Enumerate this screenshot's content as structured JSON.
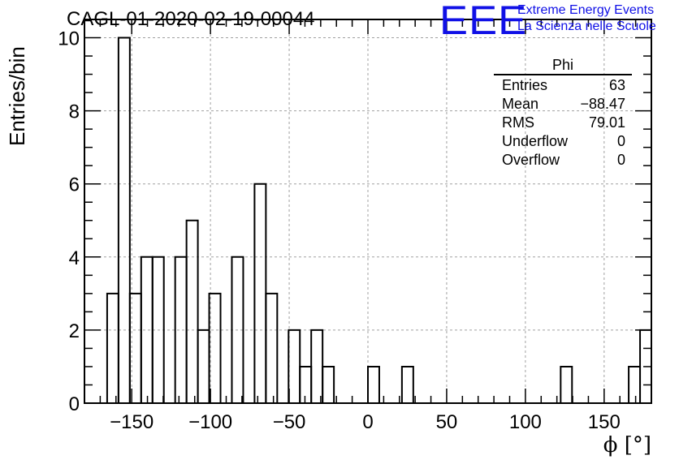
{
  "title": "CAGL-01-2020-02-19-00044",
  "logo": {
    "mark": "EEE",
    "line1": "Extreme Energy Events",
    "line2": "La Scienza nelle Scuole",
    "color": "#1010e6"
  },
  "stats_box": {
    "title": "Phi",
    "rows": [
      {
        "label": "Entries",
        "value": "63"
      },
      {
        "label": "Mean",
        "value": "−88.47"
      },
      {
        "label": "RMS",
        "value": "79.01"
      },
      {
        "label": "Underflow",
        "value": "0"
      },
      {
        "label": "Overflow",
        "value": "0"
      }
    ]
  },
  "chart_data": {
    "type": "bar",
    "style": "step-histogram",
    "xlabel": "ϕ [°]",
    "ylabel": "Entries/bin",
    "xlim": [
      -180,
      180
    ],
    "ylim": [
      0,
      10.5
    ],
    "bin_width": 7.2,
    "xticks": [
      -150,
      -100,
      -50,
      0,
      50,
      100,
      150
    ],
    "xtick_labels": [
      "−150",
      "−100",
      "−50",
      "0",
      "50",
      "100",
      "150"
    ],
    "yticks": [
      0,
      2,
      4,
      6,
      8,
      10
    ],
    "grid": true,
    "bins": [
      {
        "x0": -165.6,
        "x1": -158.4,
        "count": 3
      },
      {
        "x0": -158.4,
        "x1": -151.2,
        "count": 10
      },
      {
        "x0": -151.2,
        "x1": -144.0,
        "count": 3
      },
      {
        "x0": -144.0,
        "x1": -136.8,
        "count": 4
      },
      {
        "x0": -136.8,
        "x1": -129.6,
        "count": 4
      },
      {
        "x0": -122.4,
        "x1": -115.2,
        "count": 4
      },
      {
        "x0": -115.2,
        "x1": -108.0,
        "count": 5
      },
      {
        "x0": -108.0,
        "x1": -100.8,
        "count": 2
      },
      {
        "x0": -100.8,
        "x1": -93.6,
        "count": 3
      },
      {
        "x0": -86.4,
        "x1": -79.2,
        "count": 4
      },
      {
        "x0": -72.0,
        "x1": -64.8,
        "count": 6
      },
      {
        "x0": -64.8,
        "x1": -57.6,
        "count": 3
      },
      {
        "x0": -50.4,
        "x1": -43.2,
        "count": 2
      },
      {
        "x0": -43.2,
        "x1": -36.0,
        "count": 1
      },
      {
        "x0": -36.0,
        "x1": -28.8,
        "count": 2
      },
      {
        "x0": -28.8,
        "x1": -21.6,
        "count": 1
      },
      {
        "x0": 0.0,
        "x1": 7.2,
        "count": 1
      },
      {
        "x0": 21.6,
        "x1": 28.8,
        "count": 1
      },
      {
        "x0": 122.4,
        "x1": 129.6,
        "count": 1
      },
      {
        "x0": 165.6,
        "x1": 172.8,
        "count": 1
      },
      {
        "x0": 172.8,
        "x1": 180.0,
        "count": 2
      }
    ],
    "line_color": "#000000",
    "grid_color": "#a0a0a0"
  }
}
